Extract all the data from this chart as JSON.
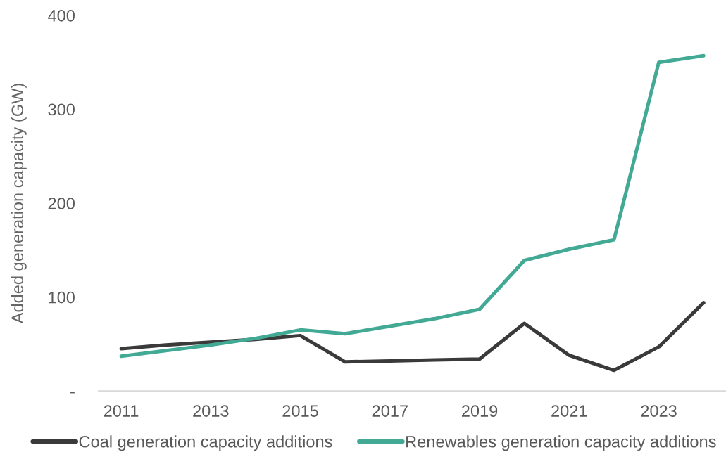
{
  "chart_data": {
    "type": "line",
    "ylabel": "Added generation capacity (GW)",
    "x": [
      2011,
      2012,
      2013,
      2014,
      2015,
      2016,
      2017,
      2018,
      2019,
      2020,
      2021,
      2022,
      2023,
      2024
    ],
    "series": [
      {
        "name": "Coal generation capacity additions",
        "color": "#3a3a3a",
        "values": [
          45,
          49,
          52,
          55,
          59,
          31,
          32,
          33,
          34,
          72,
          38,
          22,
          47,
          94
        ]
      },
      {
        "name": "Renewables generation capacity additions",
        "color": "#42a995",
        "values": [
          37,
          43,
          49,
          56,
          65,
          61,
          69,
          77,
          87,
          139,
          151,
          161,
          350,
          357
        ]
      }
    ],
    "xlim": [
      2010.5,
      2024.5
    ],
    "xticks": [
      2011,
      2013,
      2015,
      2017,
      2019,
      2021,
      2023
    ],
    "ylim": [
      0,
      400
    ],
    "yticks": [
      {
        "value": 0,
        "label": "-"
      },
      100,
      200,
      300,
      400
    ],
    "grid": false,
    "legend": "bottom",
    "line_style": "solid"
  }
}
